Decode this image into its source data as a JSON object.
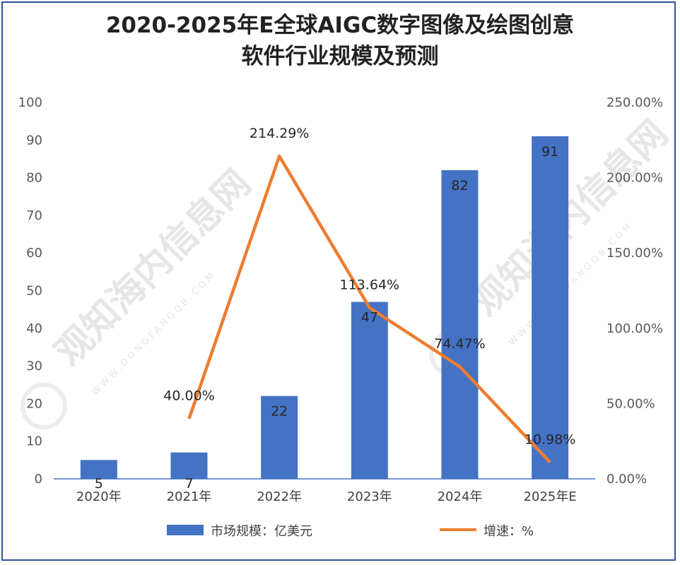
{
  "chart_data": {
    "type": "bar+line",
    "title_line1": "2020-2025年E全球AIGC数字图像及绘图创意",
    "title_line2": "软件行业规模及预测",
    "categories": [
      "2020年",
      "2021年",
      "2022年",
      "2023年",
      "2024年",
      "2025年E"
    ],
    "series": [
      {
        "name": "市场规模：亿美元",
        "type": "bar",
        "axis": "left",
        "color": "#4472c4",
        "values": [
          5,
          7,
          22,
          47,
          82,
          91
        ],
        "labels": [
          "5",
          "7",
          "22",
          "47",
          "82",
          "91"
        ]
      },
      {
        "name": "增速：%",
        "type": "line",
        "axis": "right",
        "color": "#ed7d31",
        "values": [
          null,
          40.0,
          214.29,
          113.64,
          74.47,
          10.98
        ],
        "labels": [
          "",
          "40.00%",
          "214.29%",
          "113.64%",
          "74.47%",
          "10.98%"
        ]
      }
    ],
    "y_left": {
      "min": 0,
      "max": 100,
      "ticks": [
        "0",
        "10",
        "20",
        "30",
        "40",
        "50",
        "60",
        "70",
        "80",
        "90",
        "100"
      ]
    },
    "y_right": {
      "min": 0,
      "max": 250,
      "ticks": [
        "0.00%",
        "50.00%",
        "100.00%",
        "150.00%",
        "200.00%",
        "250.00%"
      ]
    },
    "grid": false,
    "legend": "bottom"
  },
  "watermark": {
    "text": "观知海内信息网",
    "sub": "WWW.DONGFANGQB.COM"
  }
}
